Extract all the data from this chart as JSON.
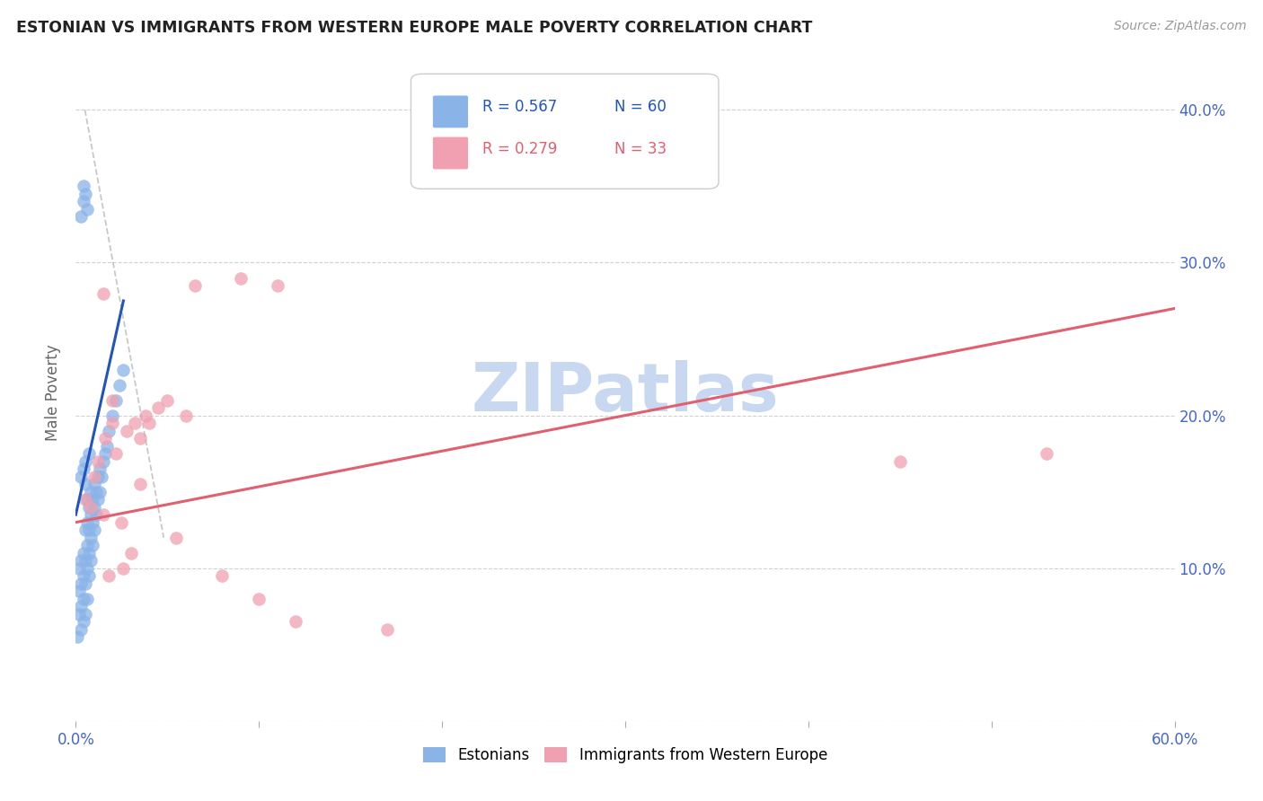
{
  "title": "ESTONIAN VS IMMIGRANTS FROM WESTERN EUROPE MALE POVERTY CORRELATION CHART",
  "source": "Source: ZipAtlas.com",
  "ylabel": "Male Poverty",
  "xlim": [
    0.0,
    0.6
  ],
  "ylim": [
    0.0,
    0.43
  ],
  "xtick_positions": [
    0.0,
    0.1,
    0.2,
    0.3,
    0.4,
    0.5,
    0.6
  ],
  "xtick_labels": [
    "0.0%",
    "",
    "",
    "",
    "",
    "",
    "60.0%"
  ],
  "ytick_positions": [
    0.0,
    0.1,
    0.2,
    0.3,
    0.4
  ],
  "ytick_labels_right": [
    "",
    "10.0%",
    "20.0%",
    "30.0%",
    "40.0%"
  ],
  "legend_labels": [
    "Estonians",
    "Immigrants from Western Europe"
  ],
  "series1_label_r": "R = 0.567",
  "series1_label_n": "N = 60",
  "series2_label_r": "R = 0.279",
  "series2_label_n": "N = 33",
  "color_blue": "#8ab4e8",
  "color_pink": "#f0a0b0",
  "line_blue": "#2255bb",
  "line_pink": "#e06070",
  "line_dashed_color": "#bbbbbb",
  "background_color": "#ffffff",
  "watermark_text": "ZIPatlas",
  "watermark_color": "#c8d8f0",
  "tick_color": "#4466cc",
  "grid_color": "#cccccc",
  "est_x": [
    0.001,
    0.002,
    0.002,
    0.002,
    0.003,
    0.003,
    0.003,
    0.003,
    0.004,
    0.004,
    0.004,
    0.004,
    0.005,
    0.005,
    0.005,
    0.005,
    0.006,
    0.006,
    0.006,
    0.006,
    0.006,
    0.007,
    0.007,
    0.007,
    0.007,
    0.008,
    0.008,
    0.008,
    0.008,
    0.009,
    0.009,
    0.009,
    0.01,
    0.01,
    0.01,
    0.011,
    0.011,
    0.012,
    0.012,
    0.013,
    0.013,
    0.014,
    0.015,
    0.016,
    0.017,
    0.018,
    0.02,
    0.022,
    0.024,
    0.026,
    0.003,
    0.004,
    0.004,
    0.005,
    0.006,
    0.003,
    0.004,
    0.005,
    0.005,
    0.007
  ],
  "est_y": [
    0.055,
    0.07,
    0.085,
    0.1,
    0.06,
    0.075,
    0.09,
    0.105,
    0.065,
    0.08,
    0.095,
    0.11,
    0.07,
    0.09,
    0.105,
    0.125,
    0.08,
    0.1,
    0.115,
    0.13,
    0.145,
    0.095,
    0.11,
    0.125,
    0.14,
    0.105,
    0.12,
    0.135,
    0.15,
    0.115,
    0.13,
    0.145,
    0.125,
    0.14,
    0.155,
    0.135,
    0.15,
    0.145,
    0.16,
    0.15,
    0.165,
    0.16,
    0.17,
    0.175,
    0.18,
    0.19,
    0.2,
    0.21,
    0.22,
    0.23,
    0.33,
    0.34,
    0.35,
    0.345,
    0.335,
    0.16,
    0.165,
    0.155,
    0.17,
    0.175
  ],
  "imm_x": [
    0.005,
    0.008,
    0.01,
    0.012,
    0.015,
    0.016,
    0.018,
    0.02,
    0.022,
    0.025,
    0.026,
    0.028,
    0.03,
    0.032,
    0.035,
    0.038,
    0.04,
    0.045,
    0.05,
    0.055,
    0.06,
    0.065,
    0.08,
    0.09,
    0.1,
    0.11,
    0.12,
    0.17,
    0.45,
    0.53,
    0.015,
    0.02,
    0.035
  ],
  "imm_y": [
    0.145,
    0.14,
    0.16,
    0.17,
    0.135,
    0.185,
    0.095,
    0.195,
    0.175,
    0.13,
    0.1,
    0.19,
    0.11,
    0.195,
    0.185,
    0.2,
    0.195,
    0.205,
    0.21,
    0.12,
    0.2,
    0.285,
    0.095,
    0.29,
    0.08,
    0.285,
    0.065,
    0.06,
    0.17,
    0.175,
    0.28,
    0.21,
    0.155
  ]
}
